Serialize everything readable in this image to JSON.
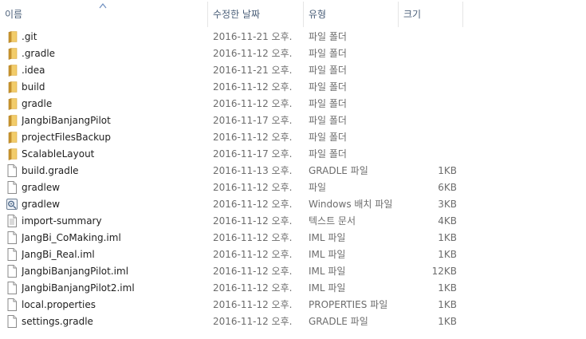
{
  "columns": {
    "name": "이름",
    "date": "수정한 날짜",
    "type": "유형",
    "size": "크기"
  },
  "sort": {
    "column": "name",
    "direction": "ascending"
  },
  "files": [
    {
      "name": ".git",
      "date": "2016-11-21 오후...",
      "type": "파일 폴더",
      "size": "",
      "icon": "folder-icon"
    },
    {
      "name": ".gradle",
      "date": "2016-11-12 오후...",
      "type": "파일 폴더",
      "size": "",
      "icon": "folder-icon"
    },
    {
      "name": ".idea",
      "date": "2016-11-21 오후...",
      "type": "파일 폴더",
      "size": "",
      "icon": "folder-icon"
    },
    {
      "name": "build",
      "date": "2016-11-12 오후...",
      "type": "파일 폴더",
      "size": "",
      "icon": "folder-icon"
    },
    {
      "name": "gradle",
      "date": "2016-11-12 오후...",
      "type": "파일 폴더",
      "size": "",
      "icon": "folder-icon"
    },
    {
      "name": "JangbiBanjangPilot",
      "date": "2016-11-17 오후...",
      "type": "파일 폴더",
      "size": "",
      "icon": "folder-icon"
    },
    {
      "name": "projectFilesBackup",
      "date": "2016-11-12 오후...",
      "type": "파일 폴더",
      "size": "",
      "icon": "folder-icon"
    },
    {
      "name": "ScalableLayout",
      "date": "2016-11-17 오후...",
      "type": "파일 폴더",
      "size": "",
      "icon": "folder-icon"
    },
    {
      "name": "build.gradle",
      "date": "2016-11-13 오후...",
      "type": "GRADLE 파일",
      "size": "1KB",
      "icon": "file-icon"
    },
    {
      "name": "gradlew",
      "date": "2016-11-12 오후...",
      "type": "파일",
      "size": "6KB",
      "icon": "file-icon"
    },
    {
      "name": "gradlew",
      "date": "2016-11-12 오후...",
      "type": "Windows 배치 파일",
      "size": "3KB",
      "icon": "batch-file-icon"
    },
    {
      "name": "import-summary",
      "date": "2016-11-12 오후...",
      "type": "텍스트 문서",
      "size": "4KB",
      "icon": "text-file-icon"
    },
    {
      "name": "JangBi_CoMaking.iml",
      "date": "2016-11-12 오후...",
      "type": "IML 파일",
      "size": "1KB",
      "icon": "file-icon"
    },
    {
      "name": "JangBi_Real.iml",
      "date": "2016-11-12 오후...",
      "type": "IML 파일",
      "size": "1KB",
      "icon": "file-icon"
    },
    {
      "name": "JangbiBanjangPilot.iml",
      "date": "2016-11-12 오후...",
      "type": "IML 파일",
      "size": "12KB",
      "icon": "file-icon"
    },
    {
      "name": "JangbiBanjangPilot2.iml",
      "date": "2016-11-12 오후...",
      "type": "IML 파일",
      "size": "1KB",
      "icon": "file-icon"
    },
    {
      "name": "local.properties",
      "date": "2016-11-12 오후...",
      "type": "PROPERTIES 파일",
      "size": "1KB",
      "icon": "file-icon"
    },
    {
      "name": "settings.gradle",
      "date": "2016-11-12 오후...",
      "type": "GRADLE 파일",
      "size": "1KB",
      "icon": "file-icon"
    }
  ],
  "colors": {
    "header_text": "#4c607a",
    "folder": "#e8b94a",
    "sort_arrow": "#6f8fc0"
  }
}
